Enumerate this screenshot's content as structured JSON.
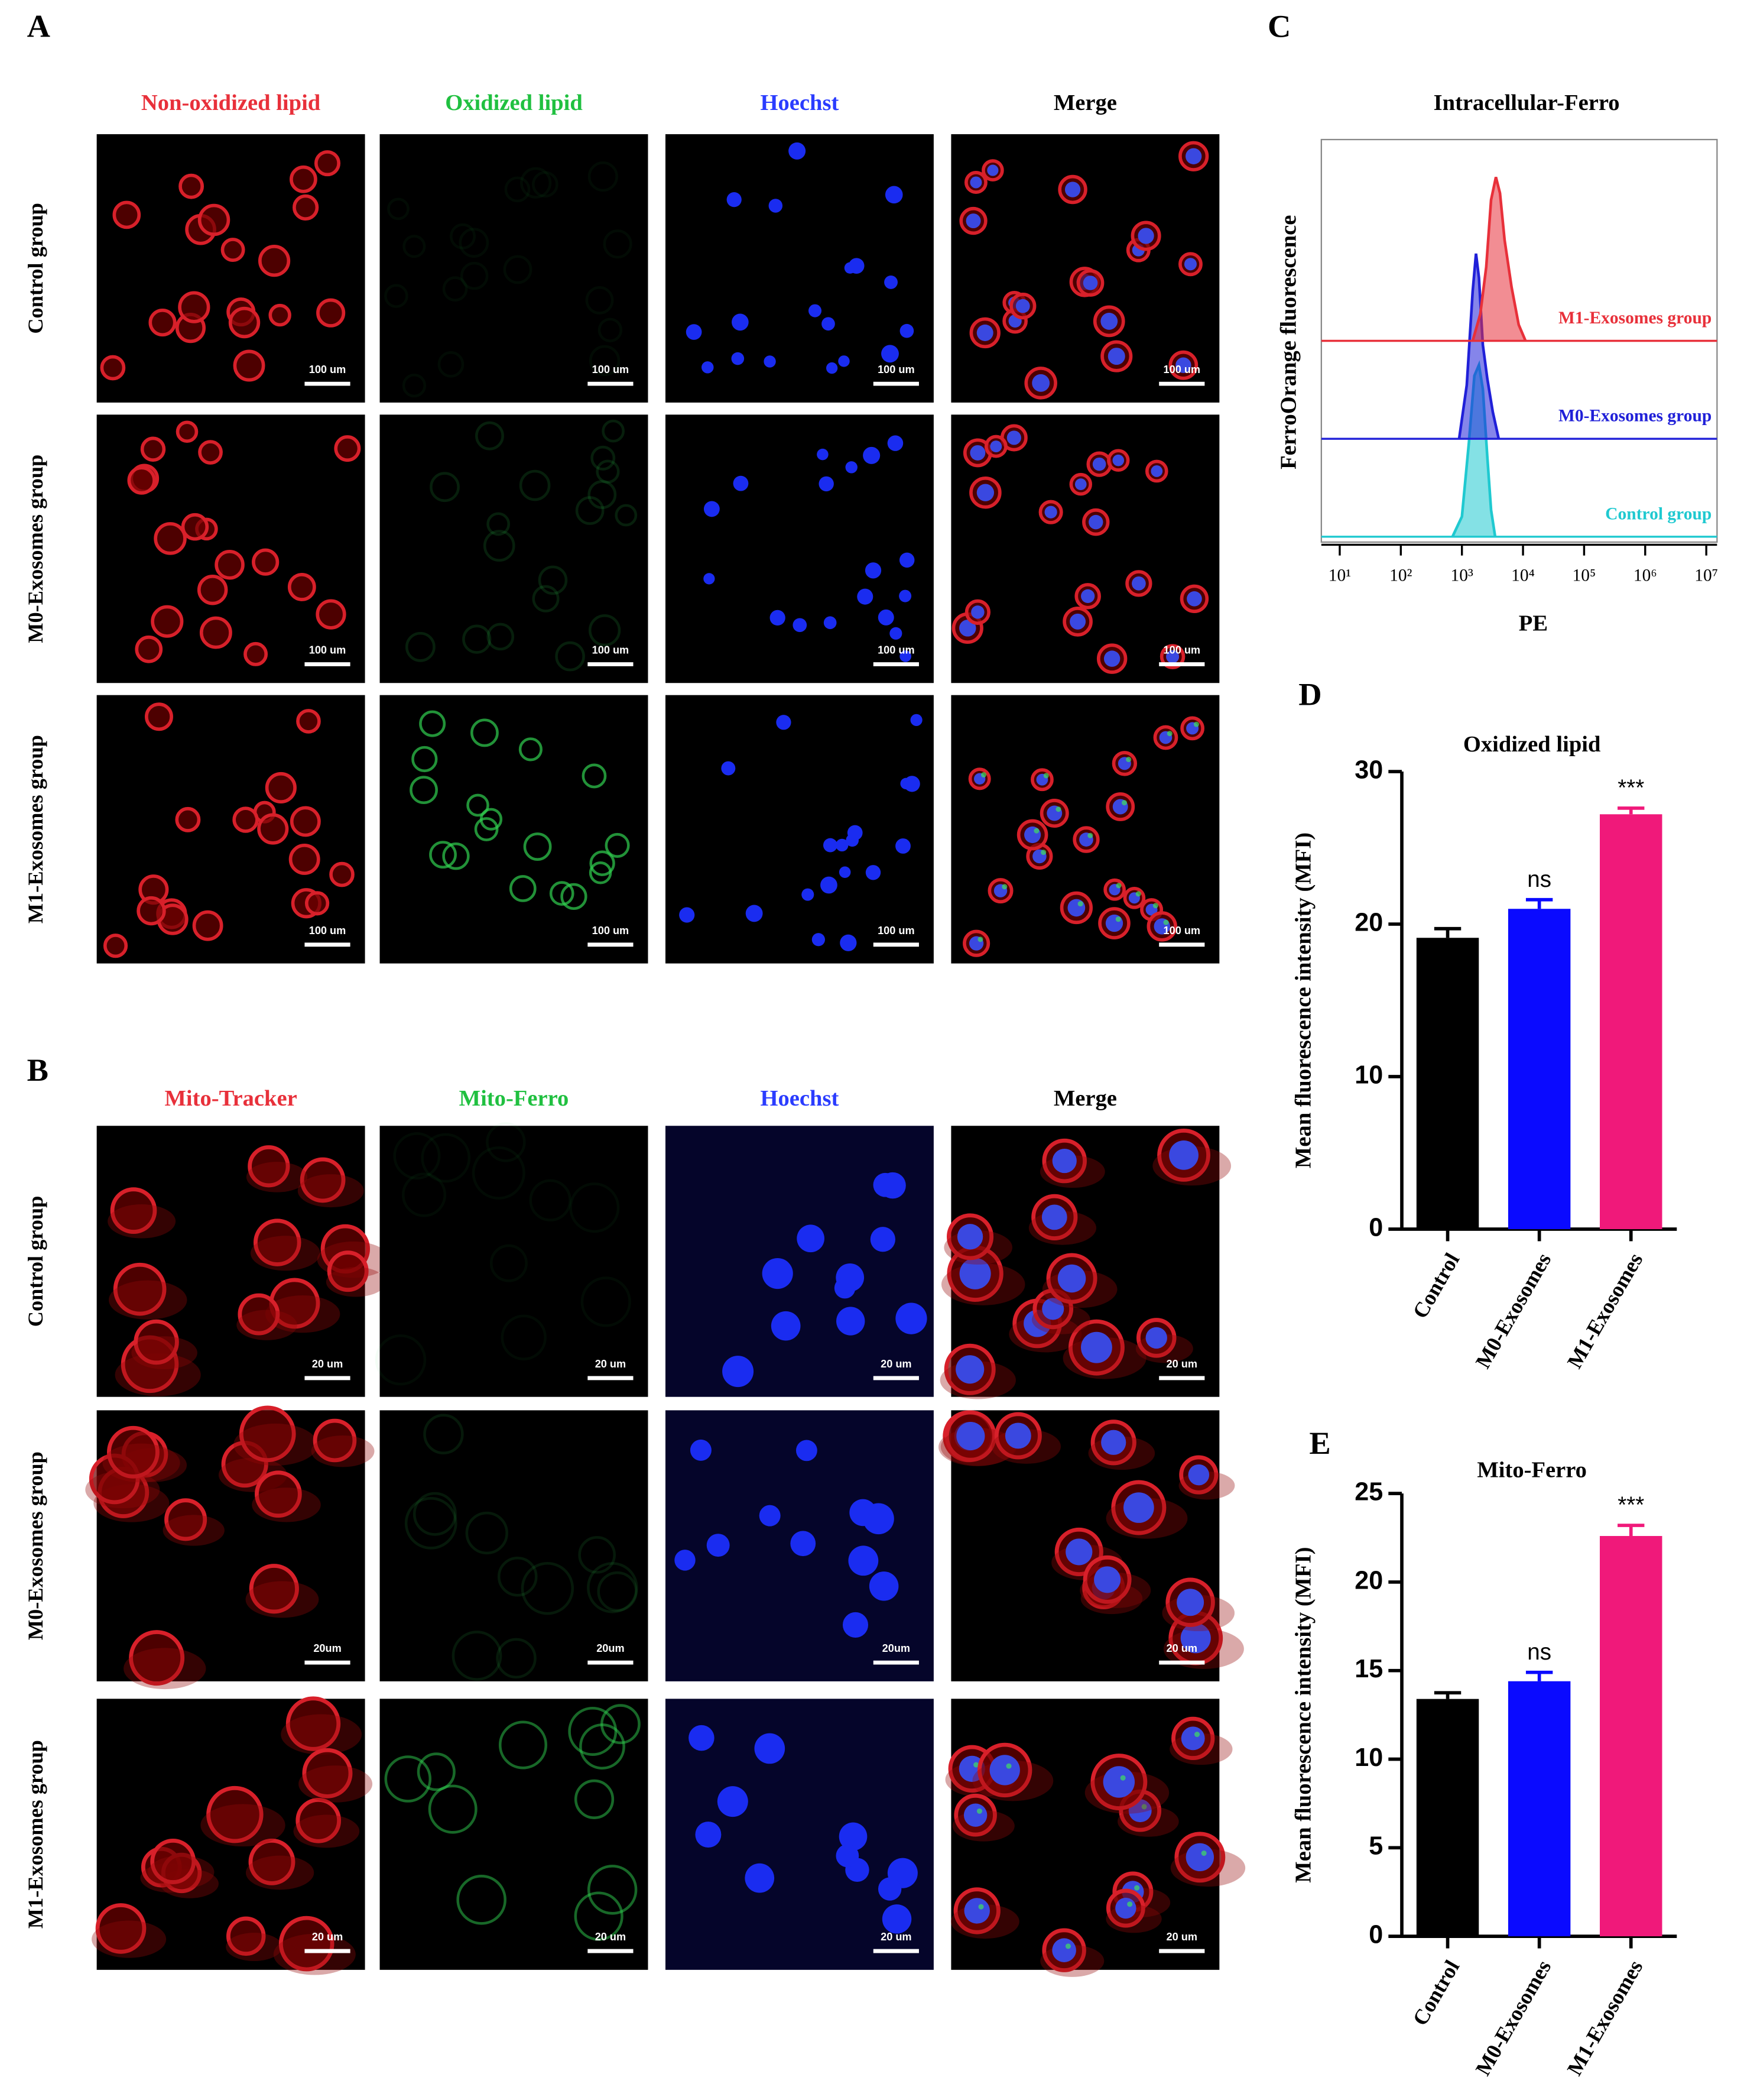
{
  "panel_a": {
    "letter": "A",
    "columns": [
      "Non-oxidized lipid",
      "Oxidized lipid",
      "Hoechst",
      "Merge"
    ],
    "rows": [
      "Control group",
      "M0-Exosomes group",
      "M1-Exosomes group"
    ],
    "scale_bars": [
      [
        "100 um",
        "100 um",
        "100 um",
        "100 um"
      ],
      [
        "100 um",
        "100 um",
        "100 um",
        "100 um"
      ],
      [
        "100 um",
        "100 um",
        "100 um",
        "100 um"
      ]
    ]
  },
  "panel_b": {
    "letter": "B",
    "columns": [
      "Mito-Tracker",
      "Mito-Ferro",
      "Hoechst",
      "Merge"
    ],
    "rows": [
      "Control group",
      "M0-Exosomes group",
      "M1-Exosomes group"
    ],
    "scale_bars": [
      [
        "20 um",
        "20 um",
        "20 um",
        "20 um"
      ],
      [
        "20um",
        "20um",
        "20um",
        "20 um"
      ],
      [
        "20 um",
        "20 um",
        "20 um",
        "20 um"
      ]
    ]
  },
  "chart_data": [
    {
      "type": "ridgeline",
      "letter": "C",
      "title": "Intracellular-Ferro",
      "x_label": "PE",
      "y_label": "FerroOrange fluorescence",
      "log_x": true,
      "xlim": [
        5,
        15000000
      ],
      "xticks": [
        {
          "value": 10,
          "label": "10¹"
        },
        {
          "value": 100,
          "label": "10²"
        },
        {
          "value": 1000,
          "label": "10³"
        },
        {
          "value": 10000,
          "label": "10⁴"
        },
        {
          "value": 100000,
          "label": "10⁵"
        },
        {
          "value": 1000000,
          "label": "10⁶"
        },
        {
          "value": 10000000,
          "label": "10⁷"
        }
      ],
      "ylim": [
        0,
        300
      ],
      "series": [
        {
          "name": "Control group",
          "color": "#1fc9d0",
          "x": [
            700,
            1000,
            1300,
            1600,
            1900,
            2200,
            2600,
            3000,
            3500
          ],
          "values": [
            0,
            15,
            70,
            120,
            128,
            110,
            60,
            20,
            0
          ]
        },
        {
          "name": "M0-Exosomes group",
          "color": "#2020d8",
          "x": [
            900,
            1200,
            1500,
            1700,
            1900,
            2200,
            2600,
            3200,
            4000
          ],
          "values": [
            0,
            40,
            110,
            138,
            120,
            70,
            45,
            20,
            0
          ]
        },
        {
          "name": "M1-Exosomes group",
          "color": "#e8303a",
          "x": [
            1500,
            2000,
            2500,
            3000,
            3600,
            4200,
            5000,
            6500,
            8500,
            11000
          ],
          "values": [
            0,
            20,
            55,
            105,
            122,
            110,
            75,
            40,
            12,
            0
          ]
        }
      ]
    },
    {
      "type": "bar",
      "letter": "D",
      "title": "Oxidized lipid",
      "y_label": "Mean fluorescence intensity (MFI)",
      "categories": [
        "Control",
        "M0-Exosomes",
        "M1-Exosomes"
      ],
      "values": [
        19.1,
        21.0,
        27.2
      ],
      "errors": [
        0.6,
        0.6,
        0.4
      ],
      "annotations": [
        null,
        "ns",
        "***"
      ],
      "colors": [
        "#000000",
        "#0a0aff",
        "#f0197a"
      ],
      "ylim": [
        0,
        30
      ],
      "yticks": [
        0,
        10,
        20,
        30
      ]
    },
    {
      "type": "bar",
      "letter": "E",
      "title": "Mito-Ferro",
      "y_label": "Mean fluorescence intensity (MFI)",
      "categories": [
        "Control",
        "M0-Exosomes",
        "M1-Exosomes"
      ],
      "values": [
        13.4,
        14.4,
        22.6
      ],
      "errors": [
        0.35,
        0.5,
        0.6
      ],
      "annotations": [
        null,
        "ns",
        "***"
      ],
      "colors": [
        "#000000",
        "#0a0aff",
        "#f0197a"
      ],
      "ylim": [
        0,
        25
      ],
      "yticks": [
        0,
        5,
        10,
        15,
        20,
        25
      ]
    }
  ]
}
